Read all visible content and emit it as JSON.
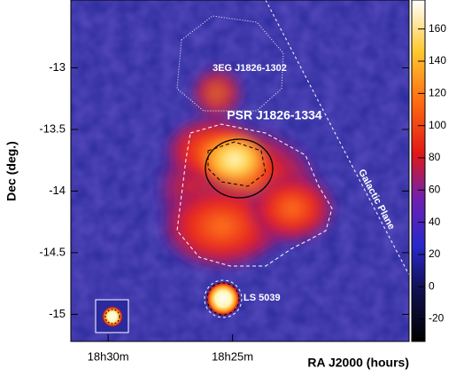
{
  "chart_data": {
    "type": "skymap",
    "x_label": "RA J2000 (hours)",
    "y_label": "Dec (deg.)",
    "xlim": [
      31.5,
      17.9
    ],
    "xticks": [
      {
        "value": 30,
        "label": "18h30m"
      },
      {
        "value": 25,
        "label": "18h25m"
      }
    ],
    "ylim": [
      -15.22,
      -12.45
    ],
    "yticks": [
      -13,
      -13.5,
      -14,
      -14.5,
      -15
    ],
    "colorbar": {
      "lim": [
        -34,
        178
      ],
      "ticks": [
        160,
        140,
        120,
        100,
        80,
        60,
        40,
        20,
        0,
        -20
      ]
    },
    "annotations": [
      "3EG J1826-1302",
      "PSR J1826-1334",
      "Galactic Plane",
      "LS 5039"
    ]
  }
}
